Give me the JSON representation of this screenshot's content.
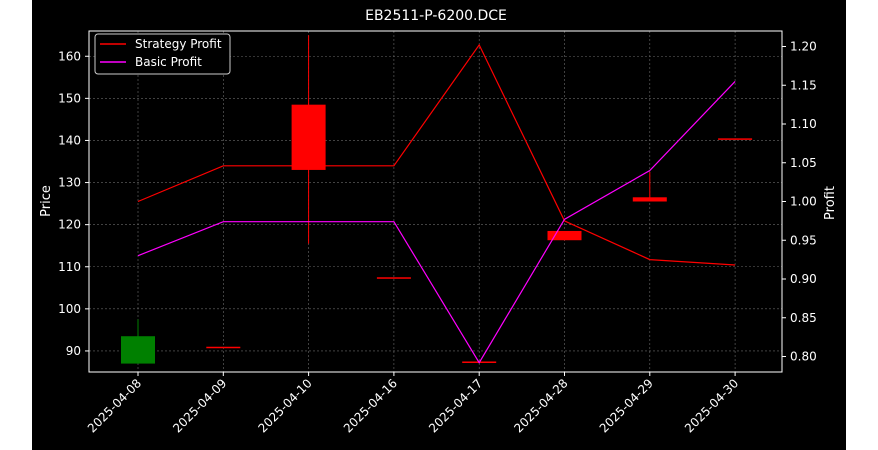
{
  "chart_data": {
    "type": "candlestick-line",
    "title": "EB2511-P-6200.DCE",
    "xlabel": "",
    "ylabel_left": "Price",
    "ylabel_right": "Profit",
    "categories": [
      "2025-04-08",
      "2025-04-09",
      "2025-04-10",
      "2025-04-16",
      "2025-04-17",
      "2025-04-28",
      "2025-04-29",
      "2025-04-30"
    ],
    "ylim_left": [
      85,
      166
    ],
    "ylim_right": [
      0.78,
      1.22
    ],
    "yticks_left": [
      90,
      100,
      110,
      120,
      130,
      140,
      150,
      160
    ],
    "yticks_right": [
      0.8,
      0.85,
      0.9,
      0.95,
      1.0,
      1.05,
      1.1,
      1.15,
      1.2
    ],
    "yticks_right_labels": [
      "0.80",
      "0.85",
      "0.90",
      "0.95",
      "1.00",
      "1.05",
      "1.10",
      "1.15",
      "1.20"
    ],
    "grid": true,
    "legend_position": "top-left",
    "candles": [
      {
        "open": 87.0,
        "close": 93.5,
        "high": 97.5,
        "low": 87.0,
        "color": "#008000"
      },
      {
        "open": 91.0,
        "close": 91.0,
        "high": 91.0,
        "low": 91.0,
        "color": "#ff0000"
      },
      {
        "open": 148.5,
        "close": 133.0,
        "high": 165.0,
        "low": 115.5,
        "color": "#ff0000"
      },
      {
        "open": 107.5,
        "close": 107.5,
        "high": 107.5,
        "low": 107.5,
        "color": "#ff0000"
      },
      {
        "open": 87.5,
        "close": 87.5,
        "high": 87.5,
        "low": 87.5,
        "color": "#ff0000"
      },
      {
        "open": 118.5,
        "close": 116.3,
        "high": 118.5,
        "low": 116.3,
        "color": "#ff0000"
      },
      {
        "open": 126.5,
        "close": 125.5,
        "high": 132.5,
        "low": 125.5,
        "color": "#ff0000"
      },
      {
        "open": 140.5,
        "close": 140.5,
        "high": 140.5,
        "low": 140.5,
        "color": "#ff0000"
      }
    ],
    "series": [
      {
        "name": "Strategy Profit",
        "color": "#ff0000",
        "values": [
          1.0,
          1.046,
          1.046,
          1.046,
          1.202,
          0.975,
          0.925,
          0.918
        ]
      },
      {
        "name": "Basic Profit",
        "color": "#ff00ff",
        "values": [
          0.93,
          0.974,
          0.974,
          0.974,
          0.792,
          0.977,
          1.04,
          1.155
        ]
      }
    ],
    "colors": {
      "background": "#000000",
      "axes_face": "#000000",
      "foreground": "#ffffff",
      "grid": "#6a6a6a"
    }
  }
}
